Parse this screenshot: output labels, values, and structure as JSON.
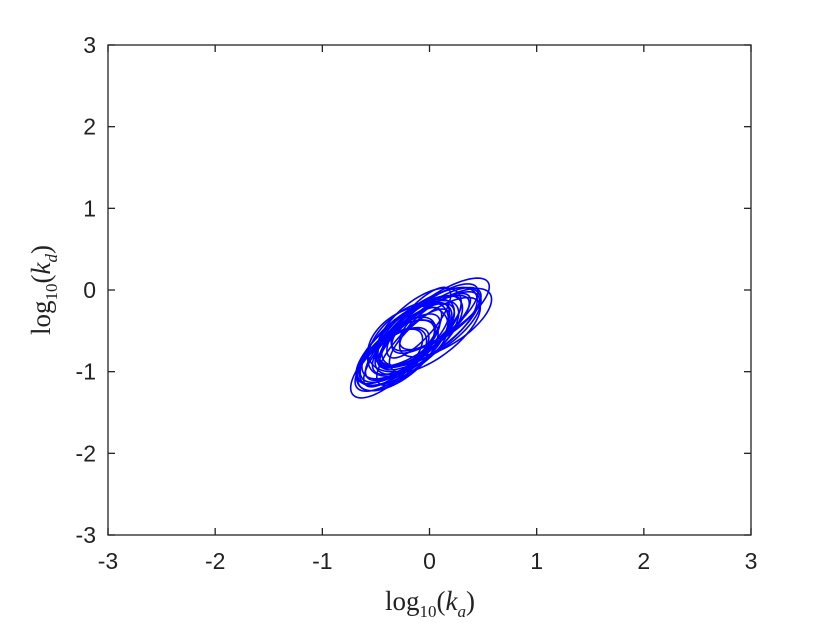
{
  "chart_data": {
    "type": "ellipse",
    "x_label": {
      "func": "log",
      "base": "10",
      "var": "k",
      "var_sub": "a"
    },
    "y_label": {
      "func": "log",
      "base": "10",
      "var": "k",
      "var_sub": "d"
    },
    "color": "#0000ff",
    "cx": [
      -0.2,
      -0.1,
      -0.3,
      0.0,
      -0.25,
      -0.15,
      0.05,
      -0.35,
      -0.2,
      -0.1,
      0.1,
      -0.3,
      -0.05,
      -0.2,
      -0.4,
      0.0,
      -0.15,
      -0.25,
      0.1,
      -0.1,
      -0.3,
      -0.05,
      0.15,
      -0.2,
      -0.35,
      0.0,
      -0.1,
      -0.25,
      0.05,
      -0.15
    ],
    "cy": [
      -0.6,
      -0.5,
      -0.75,
      -0.45,
      -0.7,
      -0.55,
      -0.35,
      -0.85,
      -0.65,
      -0.4,
      -0.3,
      -0.8,
      -0.5,
      -0.6,
      -0.9,
      -0.45,
      -0.7,
      -0.65,
      -0.35,
      -0.55,
      -0.75,
      -0.5,
      -0.4,
      -0.6,
      -0.85,
      -0.5,
      -0.45,
      -0.7,
      -0.55,
      -0.6
    ],
    "a": [
      0.6,
      0.55,
      0.5,
      0.62,
      0.58,
      0.48,
      0.55,
      0.45,
      0.65,
      0.5,
      0.6,
      0.52,
      0.57,
      0.46,
      0.5,
      0.6,
      0.55,
      0.62,
      0.5,
      0.58,
      0.47,
      0.6,
      0.55,
      0.52,
      0.48,
      0.63,
      0.56,
      0.5,
      0.58,
      0.54
    ],
    "b": [
      0.25,
      0.2,
      0.22,
      0.28,
      0.18,
      0.24,
      0.2,
      0.22,
      0.27,
      0.16,
      0.22,
      0.25,
      0.2,
      0.3,
      0.2,
      0.26,
      0.18,
      0.23,
      0.2,
      0.25,
      0.21,
      0.19,
      0.24,
      0.28,
      0.2,
      0.22,
      0.26,
      0.19,
      0.23,
      0.21
    ],
    "angle": [
      50,
      48,
      52,
      45,
      55,
      50,
      47,
      53,
      49,
      58,
      44,
      51,
      46,
      50,
      54,
      48,
      56,
      50,
      45,
      52,
      49,
      47,
      44,
      55,
      50,
      46,
      53,
      51,
      48,
      50
    ],
    "xlim": [
      -3,
      3
    ],
    "ylim": [
      -3,
      3
    ],
    "xticks": [
      -3,
      -2,
      -1,
      0,
      1,
      2,
      3
    ],
    "yticks": [
      -3,
      -2,
      -1,
      0,
      1,
      2,
      3
    ]
  }
}
